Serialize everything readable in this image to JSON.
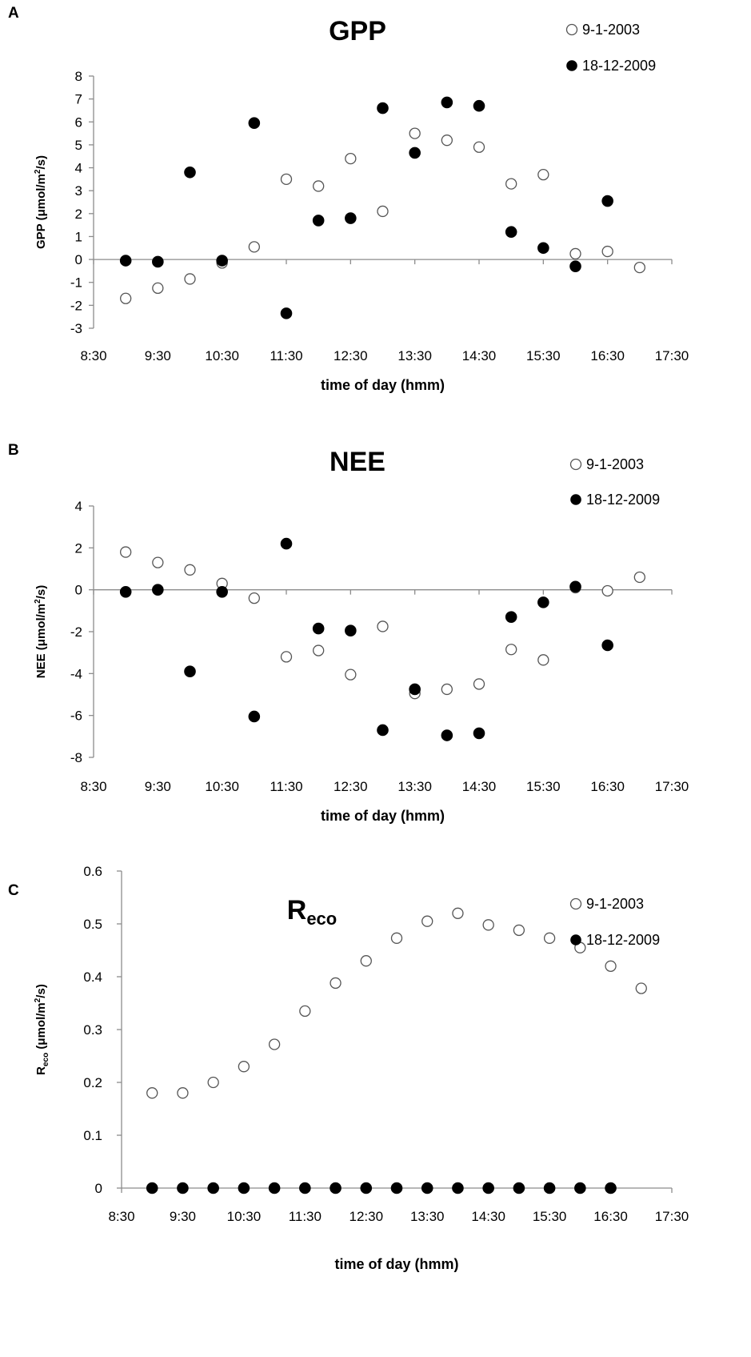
{
  "chart_data": [
    {
      "type": "scatter",
      "panel": "A",
      "title": "GPP",
      "xlabel": "time of day (hmm)",
      "ylabel": "GPP (μmol/m²/s)",
      "ylabel_parts": {
        "pre": "GPP (μmol/m",
        "sup": "2",
        "post": "/s)"
      },
      "xlim": [
        8.5,
        17.5
      ],
      "ylim": [
        -3,
        8
      ],
      "xticks": [
        8.5,
        9.5,
        10.5,
        11.5,
        12.5,
        13.5,
        14.5,
        15.5,
        16.5,
        17.5
      ],
      "xtick_labels": [
        "8:30",
        "9:30",
        "10:30",
        "11:30",
        "12:30",
        "13:30",
        "14:30",
        "15:30",
        "16:30",
        "17:30"
      ],
      "yticks": [
        -3,
        -2,
        -1,
        0,
        1,
        2,
        3,
        4,
        5,
        6,
        7,
        8
      ],
      "ytick_labels": [
        "-3",
        "-2",
        "-1",
        "0",
        "1",
        "2",
        "3",
        "4",
        "5",
        "6",
        "7",
        "8"
      ],
      "zero_line": true,
      "legend_position": "top-right",
      "series": [
        {
          "name": "9-1-2003",
          "marker": "open-circle",
          "x": [
            9.0,
            9.5,
            10.0,
            10.5,
            11.0,
            11.5,
            12.0,
            12.5,
            13.0,
            13.5,
            14.0,
            14.5,
            15.0,
            15.5,
            16.0,
            16.5,
            17.0
          ],
          "y": [
            -1.7,
            -1.25,
            -0.85,
            -0.15,
            0.55,
            3.5,
            3.2,
            4.4,
            2.1,
            5.5,
            5.2,
            4.9,
            3.3,
            3.7,
            0.25,
            0.35,
            -0.35
          ]
        },
        {
          "name": "18-12-2009",
          "marker": "filled-circle",
          "x": [
            9.0,
            9.5,
            10.0,
            10.5,
            11.0,
            11.5,
            12.0,
            12.5,
            13.0,
            13.5,
            14.0,
            14.5,
            15.0,
            15.5,
            16.0,
            16.5
          ],
          "y": [
            -0.05,
            -0.1,
            3.8,
            -0.05,
            5.95,
            -2.35,
            1.7,
            1.8,
            6.6,
            4.65,
            6.85,
            6.7,
            1.2,
            0.5,
            -0.3,
            2.55
          ]
        }
      ]
    },
    {
      "type": "scatter",
      "panel": "B",
      "title": "NEE",
      "xlabel": "time of day (hmm)",
      "ylabel": "NEE (μmol/m²/s)",
      "ylabel_parts": {
        "pre": "NEE (μmol/m",
        "sup": "2",
        "post": "/s)"
      },
      "xlim": [
        8.5,
        17.5
      ],
      "ylim": [
        -8,
        4
      ],
      "xticks": [
        8.5,
        9.5,
        10.5,
        11.5,
        12.5,
        13.5,
        14.5,
        15.5,
        16.5,
        17.5
      ],
      "xtick_labels": [
        "8:30",
        "9:30",
        "10:30",
        "11:30",
        "12:30",
        "13:30",
        "14:30",
        "15:30",
        "16:30",
        "17:30"
      ],
      "yticks": [
        -8,
        -6,
        -4,
        -2,
        0,
        2,
        4
      ],
      "ytick_labels": [
        "-8",
        "-6",
        "-4",
        "-2",
        "0",
        "2",
        "4"
      ],
      "zero_line": true,
      "legend_position": "top-right",
      "series": [
        {
          "name": "9-1-2003",
          "marker": "open-circle",
          "x": [
            9.0,
            9.5,
            10.0,
            10.5,
            11.0,
            11.5,
            12.0,
            12.5,
            13.0,
            13.5,
            14.0,
            14.5,
            15.0,
            15.5,
            16.0,
            16.5,
            17.0
          ],
          "y": [
            1.8,
            1.3,
            0.95,
            0.3,
            -0.4,
            -3.2,
            -2.9,
            -4.05,
            -1.75,
            -4.95,
            -4.75,
            -4.5,
            -2.85,
            -3.35,
            0.1,
            -0.05,
            0.6
          ]
        },
        {
          "name": "18-12-2009",
          "marker": "filled-circle",
          "x": [
            9.0,
            9.5,
            10.0,
            10.5,
            11.0,
            11.5,
            12.0,
            12.5,
            13.0,
            13.5,
            14.0,
            14.5,
            15.0,
            15.5,
            16.0,
            16.5
          ],
          "y": [
            -0.1,
            0.0,
            -3.9,
            -0.1,
            -6.05,
            2.2,
            -1.85,
            -1.95,
            -6.7,
            -4.75,
            -6.95,
            -6.85,
            -1.3,
            -0.6,
            0.15,
            -2.65
          ]
        }
      ]
    },
    {
      "type": "scatter",
      "panel": "C",
      "title": "Reco",
      "title_parts": {
        "main": "R",
        "sub": "eco"
      },
      "xlabel": "time of day (hmm)",
      "ylabel": "Reco (μmol/m²/s)",
      "ylabel_parts": {
        "main": "R",
        "sub": "eco",
        "pre": " (μmol/m",
        "sup": "2",
        "post": "/s)"
      },
      "xlim": [
        8.5,
        17.5
      ],
      "ylim": [
        0,
        0.6
      ],
      "xticks": [
        8.5,
        9.5,
        10.5,
        11.5,
        12.5,
        13.5,
        14.5,
        15.5,
        16.5,
        17.5
      ],
      "xtick_labels": [
        "8:30",
        "9:30",
        "10:30",
        "11:30",
        "12:30",
        "13:30",
        "14:30",
        "15:30",
        "16:30",
        "17:30"
      ],
      "yticks": [
        0,
        0.1,
        0.2,
        0.3,
        0.4,
        0.5,
        0.6
      ],
      "ytick_labels": [
        "0",
        "0.1",
        "0.2",
        "0.3",
        "0.4",
        "0.5",
        "0.6"
      ],
      "zero_line": true,
      "legend_position": "top-right",
      "series": [
        {
          "name": "9-1-2003",
          "marker": "open-circle",
          "x": [
            9.0,
            9.5,
            10.0,
            10.5,
            11.0,
            11.5,
            12.0,
            12.5,
            13.0,
            13.5,
            14.0,
            14.5,
            15.0,
            15.5,
            16.0,
            16.5,
            17.0
          ],
          "y": [
            0.18,
            0.18,
            0.2,
            0.23,
            0.272,
            0.335,
            0.388,
            0.43,
            0.473,
            0.505,
            0.52,
            0.498,
            0.488,
            0.473,
            0.455,
            0.42,
            0.378
          ]
        },
        {
          "name": "18-12-2009",
          "marker": "filled-circle",
          "x": [
            9.0,
            9.5,
            10.0,
            10.5,
            11.0,
            11.5,
            12.0,
            12.5,
            13.0,
            13.5,
            14.0,
            14.5,
            15.0,
            15.5,
            16.0,
            16.5
          ],
          "y": [
            0,
            0,
            0,
            0,
            0,
            0,
            0,
            0,
            0,
            0,
            0,
            0,
            0,
            0,
            0,
            0
          ]
        }
      ]
    }
  ]
}
